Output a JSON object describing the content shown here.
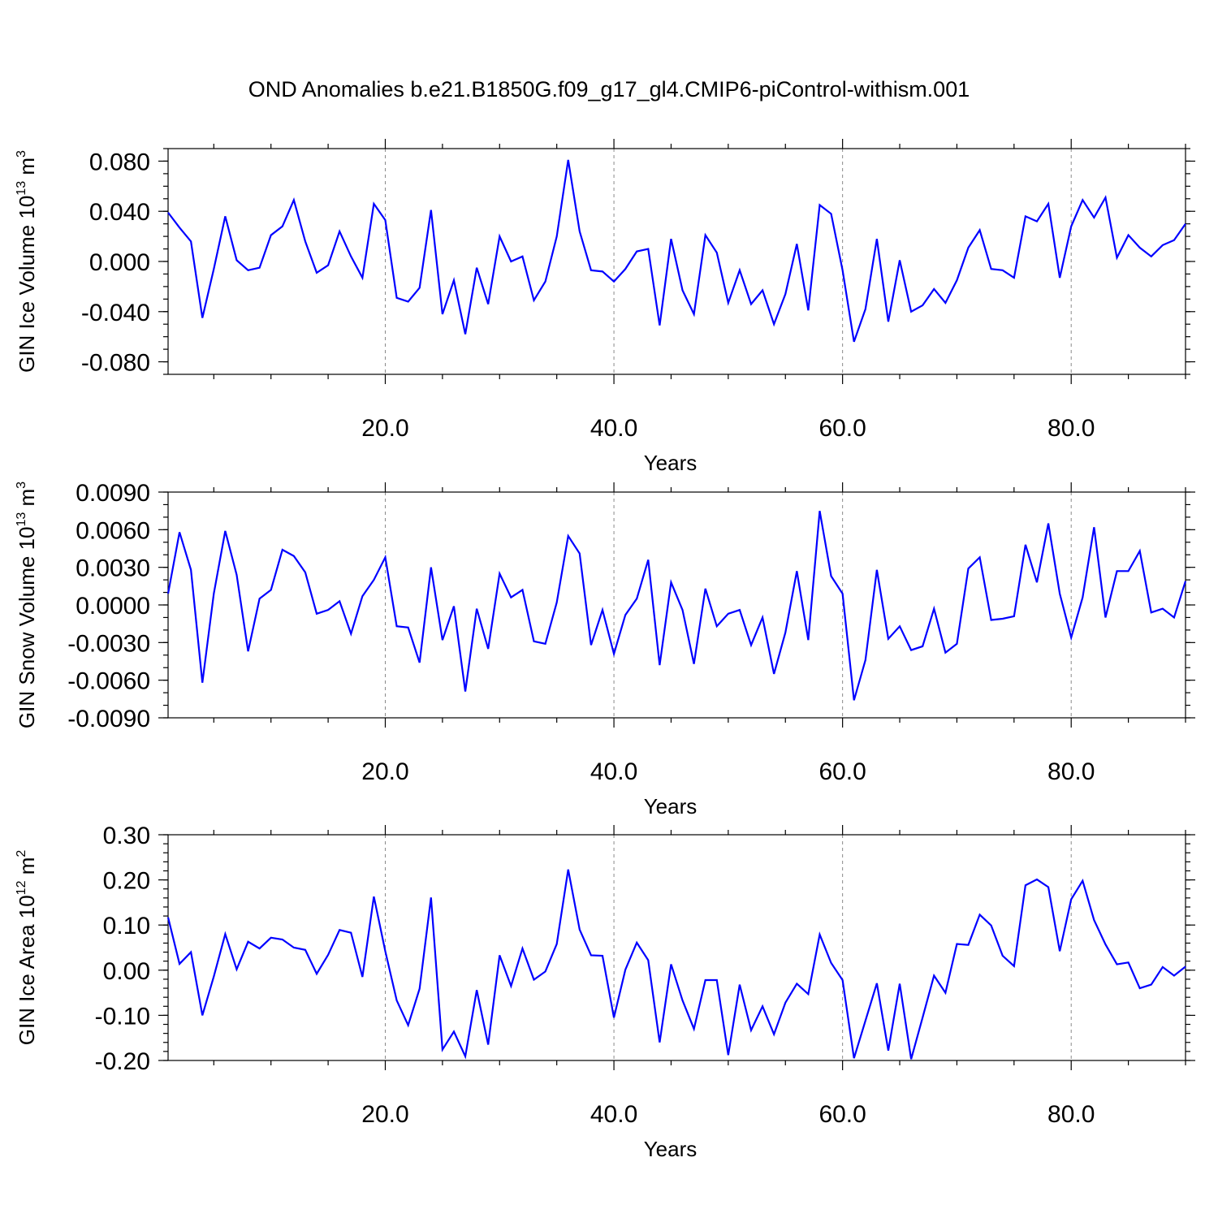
{
  "title": "OND Anomalies b.e21.B1850G.f09_g17_gl4.CMIP6-piControl-withism.001",
  "chart_data": [
    {
      "type": "line",
      "ylabel": "GIN Ice Volume 10",
      "ylabel_exp": "13",
      "ylabel_unit": " m",
      "ylabel_unit_exp": "3",
      "xlabel": "Years",
      "xlim": [
        1,
        90
      ],
      "ylim": [
        -0.09,
        0.09
      ],
      "xticks": [
        20,
        40,
        60,
        80
      ],
      "xtick_labels": [
        "20.0",
        "40.0",
        "60.0",
        "80.0"
      ],
      "yticks": [
        -0.08,
        -0.04,
        0.0,
        0.04,
        0.08
      ],
      "ytick_labels": [
        "-0.080",
        "-0.040",
        "0.000",
        "0.040",
        "0.080"
      ],
      "yminor": 0.01,
      "color": "#0000ff",
      "values": [
        0.039,
        0.027,
        0.016,
        -0.045,
        -0.006,
        0.036,
        0.001,
        -0.007,
        -0.005,
        0.021,
        0.028,
        0.049,
        0.016,
        -0.009,
        -0.003,
        0.024,
        0.004,
        -0.013,
        0.046,
        0.033,
        -0.029,
        -0.032,
        -0.021,
        0.041,
        -0.042,
        -0.015,
        -0.058,
        -0.005,
        -0.034,
        0.02,
        0.0,
        0.004,
        -0.031,
        -0.016,
        0.02,
        0.081,
        0.024,
        -0.007,
        -0.008,
        -0.016,
        -0.006,
        0.008,
        0.01,
        -0.051,
        0.018,
        -0.023,
        -0.042,
        0.021,
        0.007,
        -0.033,
        -0.007,
        -0.034,
        -0.023,
        -0.05,
        -0.026,
        0.014,
        -0.039,
        0.045,
        0.038,
        -0.007,
        -0.064,
        -0.038,
        0.018,
        -0.048,
        0.001,
        -0.04,
        -0.035,
        -0.022,
        -0.033,
        -0.015,
        0.011,
        0.025,
        -0.006,
        -0.007,
        -0.013,
        0.036,
        0.032,
        0.046,
        -0.013,
        0.028,
        0.049,
        0.035,
        0.051,
        0.003,
        0.021,
        0.011,
        0.004,
        0.013,
        0.017,
        0.03
      ]
    },
    {
      "type": "line",
      "ylabel": "GIN Snow Volume 10",
      "ylabel_exp": "13",
      "ylabel_unit": " m",
      "ylabel_unit_exp": "3",
      "xlabel": "Years",
      "xlim": [
        1,
        90
      ],
      "ylim": [
        -0.009,
        0.009
      ],
      "xticks": [
        20,
        40,
        60,
        80
      ],
      "xtick_labels": [
        "20.0",
        "40.0",
        "60.0",
        "80.0"
      ],
      "yticks": [
        -0.009,
        -0.006,
        -0.003,
        0.0,
        0.003,
        0.006,
        0.009
      ],
      "ytick_labels": [
        "-0.0090",
        "-0.0060",
        "-0.0030",
        "0.0000",
        "0.0030",
        "0.0060",
        "0.0090"
      ],
      "yminor": 0.001,
      "color": "#0000ff",
      "values": [
        0.0009,
        0.0058,
        0.0028,
        -0.0062,
        0.0009,
        0.0059,
        0.0024,
        -0.0037,
        0.0005,
        0.0012,
        0.0044,
        0.0039,
        0.0026,
        -0.0007,
        -0.0004,
        0.0003,
        -0.0023,
        0.0007,
        0.002,
        0.0038,
        -0.0017,
        -0.0018,
        -0.0046,
        0.003,
        -0.0028,
        -0.0001,
        -0.0069,
        -0.0003,
        -0.0035,
        0.0025,
        0.0006,
        0.0012,
        -0.0029,
        -0.0031,
        0.0002,
        0.0055,
        0.0041,
        -0.0032,
        -0.0004,
        -0.0039,
        -0.0008,
        0.0005,
        0.0036,
        -0.0048,
        0.0018,
        -0.0004,
        -0.0047,
        0.0013,
        -0.0017,
        -0.0007,
        -0.0004,
        -0.0032,
        -0.001,
        -0.0055,
        -0.0022,
        0.0027,
        -0.0028,
        0.0075,
        0.0023,
        0.0009,
        -0.0076,
        -0.0044,
        0.0028,
        -0.0027,
        -0.0017,
        -0.0036,
        -0.0033,
        -0.0003,
        -0.0038,
        -0.0031,
        0.0029,
        0.0038,
        -0.0012,
        -0.0011,
        -0.0009,
        0.0048,
        0.0018,
        0.0065,
        0.0009,
        -0.0026,
        0.0006,
        0.0062,
        -0.001,
        0.0027,
        0.0027,
        0.0043,
        -0.0006,
        -0.0003,
        -0.001,
        0.0019
      ]
    },
    {
      "type": "line",
      "ylabel": "GIN Ice Area 10",
      "ylabel_exp": "12",
      "ylabel_unit": " m",
      "ylabel_unit_exp": "2",
      "xlabel": "Years",
      "xlim": [
        1,
        90
      ],
      "ylim": [
        -0.2,
        0.3
      ],
      "xticks": [
        20,
        40,
        60,
        80
      ],
      "xtick_labels": [
        "20.0",
        "40.0",
        "60.0",
        "80.0"
      ],
      "yticks": [
        -0.2,
        -0.1,
        0.0,
        0.1,
        0.2,
        0.3
      ],
      "ytick_labels": [
        "-0.20",
        "-0.10",
        "0.00",
        "0.10",
        "0.20",
        "0.30"
      ],
      "yminor": 0.02,
      "color": "#0000ff",
      "values": [
        0.117,
        0.014,
        0.04,
        -0.1,
        -0.014,
        0.08,
        0.002,
        0.063,
        0.048,
        0.072,
        0.068,
        0.05,
        0.045,
        -0.008,
        0.034,
        0.089,
        0.083,
        -0.015,
        0.163,
        0.042,
        -0.067,
        -0.122,
        -0.041,
        0.161,
        -0.176,
        -0.136,
        -0.191,
        -0.044,
        -0.165,
        0.033,
        -0.035,
        0.048,
        -0.021,
        -0.003,
        0.058,
        0.223,
        0.09,
        0.033,
        0.032,
        -0.105,
        0.001,
        0.061,
        0.022,
        -0.16,
        0.013,
        -0.067,
        -0.13,
        -0.022,
        -0.022,
        -0.188,
        -0.032,
        -0.133,
        -0.08,
        -0.142,
        -0.072,
        -0.03,
        -0.053,
        0.079,
        0.016,
        -0.022,
        -0.195,
        -0.112,
        -0.029,
        -0.178,
        -0.03,
        -0.197,
        -0.105,
        -0.012,
        -0.05,
        0.058,
        0.056,
        0.123,
        0.099,
        0.032,
        0.009,
        0.188,
        0.201,
        0.184,
        0.042,
        0.157,
        0.198,
        0.111,
        0.057,
        0.013,
        0.017,
        -0.04,
        -0.032,
        0.007,
        -0.012,
        0.008
      ]
    }
  ]
}
